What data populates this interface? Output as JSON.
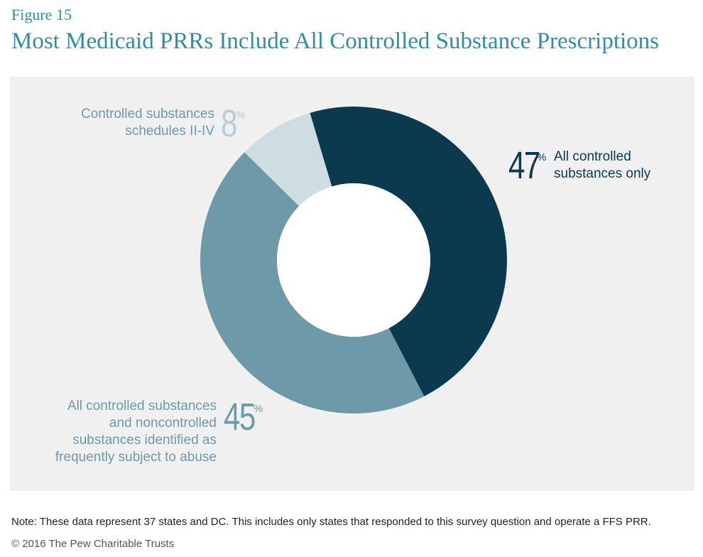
{
  "figure_label": "Figure 15",
  "title": "Most Medicaid PRRs Include All Controlled Substance Prescriptions",
  "colors": {
    "title": "#2c8fa6",
    "panel_bg": "#f0f0f0",
    "slice_all_controlled": "#0b3a4f",
    "slice_noncontrolled": "#6e99a9",
    "slice_schedules": "#cfdde3"
  },
  "chart_data": {
    "type": "pie",
    "variant": "donut",
    "slices": [
      {
        "label": "All controlled substances only",
        "value": 47,
        "color": "#0b3a4f"
      },
      {
        "label": "All controlled substances and noncontrolled substances identified as frequently subject to abuse",
        "value": 45,
        "color": "#6e99a9"
      },
      {
        "label": "Controlled substances schedules II-IV",
        "value": 8,
        "color": "#cfdde3"
      }
    ]
  },
  "labels": {
    "a": {
      "pct": "47",
      "sign": "%",
      "lines": [
        "All controlled",
        "substances only"
      ]
    },
    "b": {
      "pct": "45",
      "sign": "%",
      "lines": [
        "All controlled substances",
        "and noncontrolled",
        "substances identified as",
        "frequently subject to abuse"
      ]
    },
    "c": {
      "pct": "8",
      "sign": "%",
      "lines": [
        "Controlled substances",
        "schedules II-IV"
      ]
    }
  },
  "note": "Note: These data represent 37 states and DC. This includes only states that responded to this survey question and operate a FFS PRR.",
  "copyright": "© 2016 The Pew Charitable Trusts"
}
